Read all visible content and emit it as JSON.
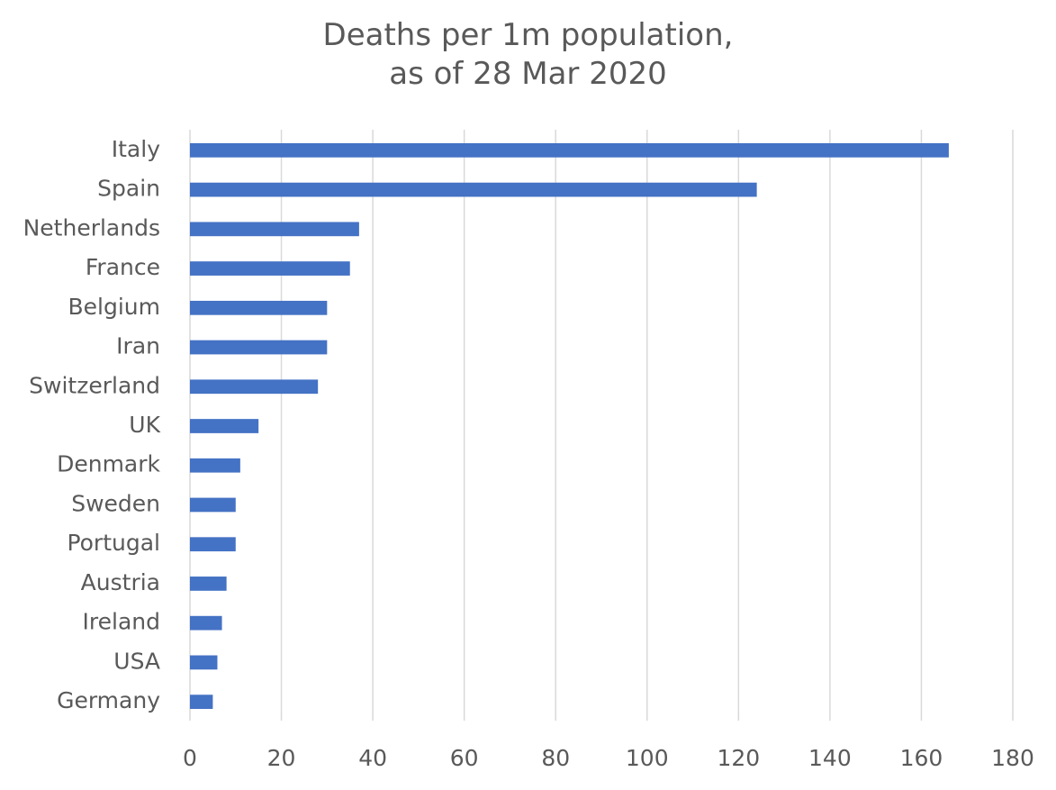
{
  "chart_data": {
    "type": "bar",
    "orientation": "horizontal",
    "title": [
      "Deaths per 1m population,",
      "as of 28 Mar 2020"
    ],
    "xlabel": "",
    "ylabel": "",
    "categories": [
      "Italy",
      "Spain",
      "Netherlands",
      "France",
      "Belgium",
      "Iran",
      "Switzerland",
      "UK",
      "Denmark",
      "Sweden",
      "Portugal",
      "Austria",
      "Ireland",
      "USA",
      "Germany"
    ],
    "values": [
      166,
      124,
      37,
      35,
      30,
      30,
      28,
      15,
      11,
      10,
      10,
      8,
      7,
      6,
      5
    ],
    "xlim": [
      0,
      180
    ],
    "xticks": [
      0,
      20,
      40,
      60,
      80,
      100,
      120,
      140,
      160,
      180
    ],
    "grid": "vertical",
    "legend": "none",
    "bar_color": "#4472C4",
    "grid_color": "#D9D9D9",
    "text_color": "#595959"
  }
}
